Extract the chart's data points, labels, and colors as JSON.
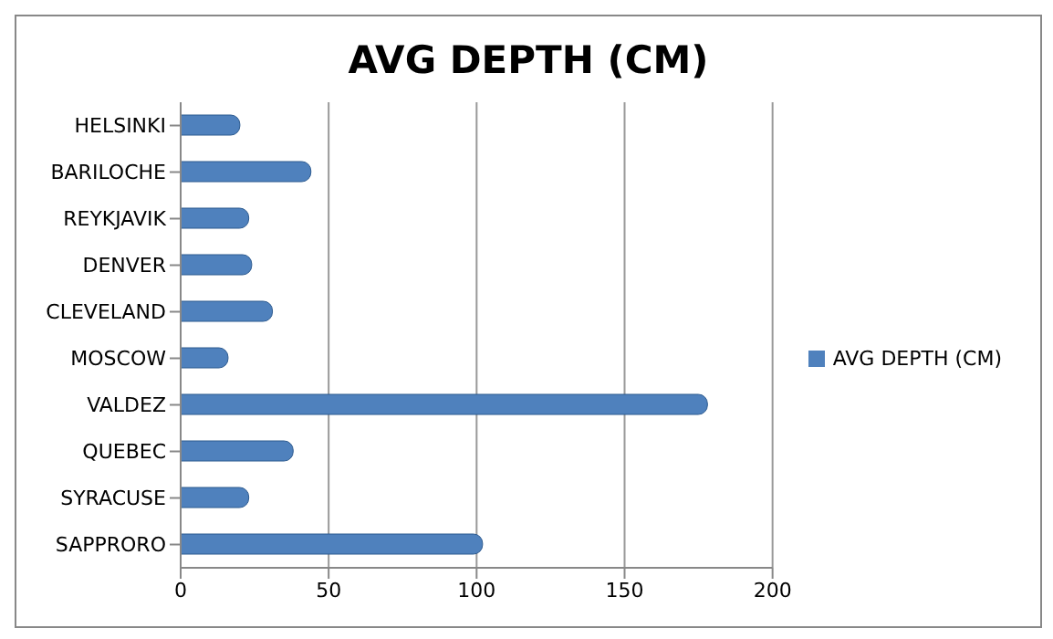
{
  "chart_data": {
    "type": "bar",
    "orientation": "horizontal",
    "title": "AVG DEPTH (CM)",
    "categories": [
      "HELSINKI",
      "BARILOCHE",
      "REYKJAVIK",
      "DENVER",
      "CLEVELAND",
      "MOSCOW",
      "VALDEZ",
      "QUEBEC",
      "SYRACUSE",
      "SAPPRORO"
    ],
    "series": [
      {
        "name": "AVG DEPTH (CM)",
        "color": "#4f81bd",
        "values": [
          20,
          44,
          23,
          24,
          31,
          16,
          178,
          38,
          23,
          102
        ]
      }
    ],
    "xlim": [
      0,
      200
    ],
    "xticks": [
      0,
      50,
      100,
      150,
      200
    ],
    "grid": "x",
    "legend": "right"
  }
}
